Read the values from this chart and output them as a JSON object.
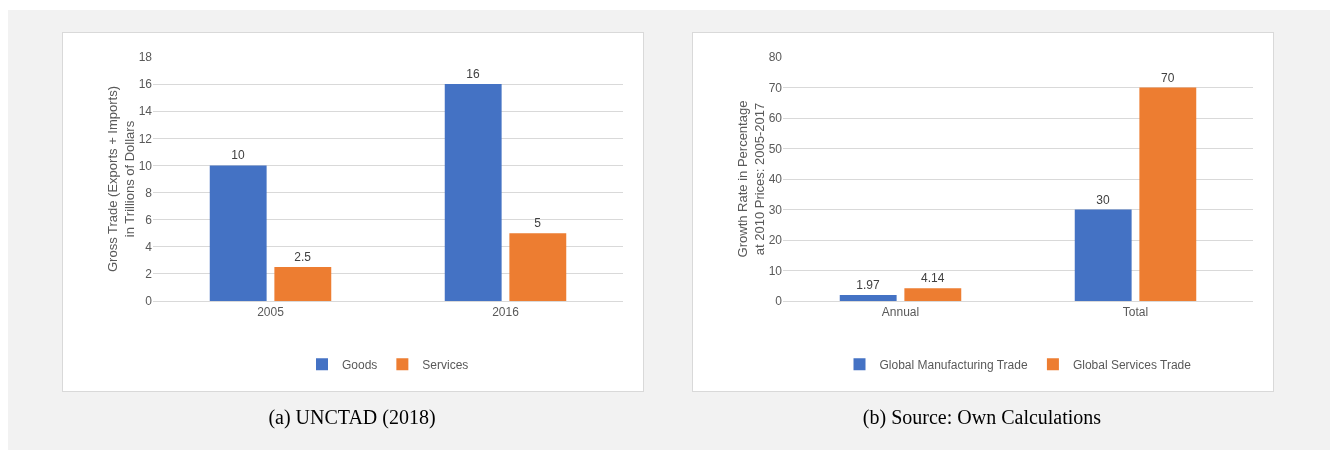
{
  "chart_data": [
    {
      "type": "bar",
      "ylabel": "Gross Trade (Exports + Imports)\nin Trillions of Dollars",
      "categories": [
        "2005",
        "2016"
      ],
      "series": [
        {
          "name": "Goods",
          "color": "#4472c4",
          "values": [
            10,
            16
          ]
        },
        {
          "name": "Services",
          "color": "#ed7d31",
          "values": [
            2.5,
            5
          ]
        }
      ],
      "ylim": [
        0,
        18
      ],
      "yticks": [
        0,
        2,
        4,
        6,
        8,
        10,
        12,
        14,
        16,
        18
      ],
      "grid": "y",
      "legend": "bottom",
      "data_labels": true,
      "annotations": [
        "(a) UNCTAD (2018)"
      ]
    },
    {
      "type": "bar",
      "ylabel": "Growth Rate in Percentage\nat 2010 Prices: 2005-2017",
      "categories": [
        "Annual",
        "Total"
      ],
      "series": [
        {
          "name": "Global Manufacturing Trade",
          "color": "#4472c4",
          "values": [
            1.97,
            30
          ]
        },
        {
          "name": "Global Services Trade",
          "color": "#ed7d31",
          "values": [
            4.14,
            70
          ]
        }
      ],
      "ylim": [
        0,
        80
      ],
      "yticks": [
        0,
        10,
        20,
        30,
        40,
        50,
        60,
        70,
        80
      ],
      "grid": "y",
      "legend": "bottom",
      "data_labels": true,
      "annotations": [
        "(b) Source: Own Calculations"
      ]
    }
  ]
}
